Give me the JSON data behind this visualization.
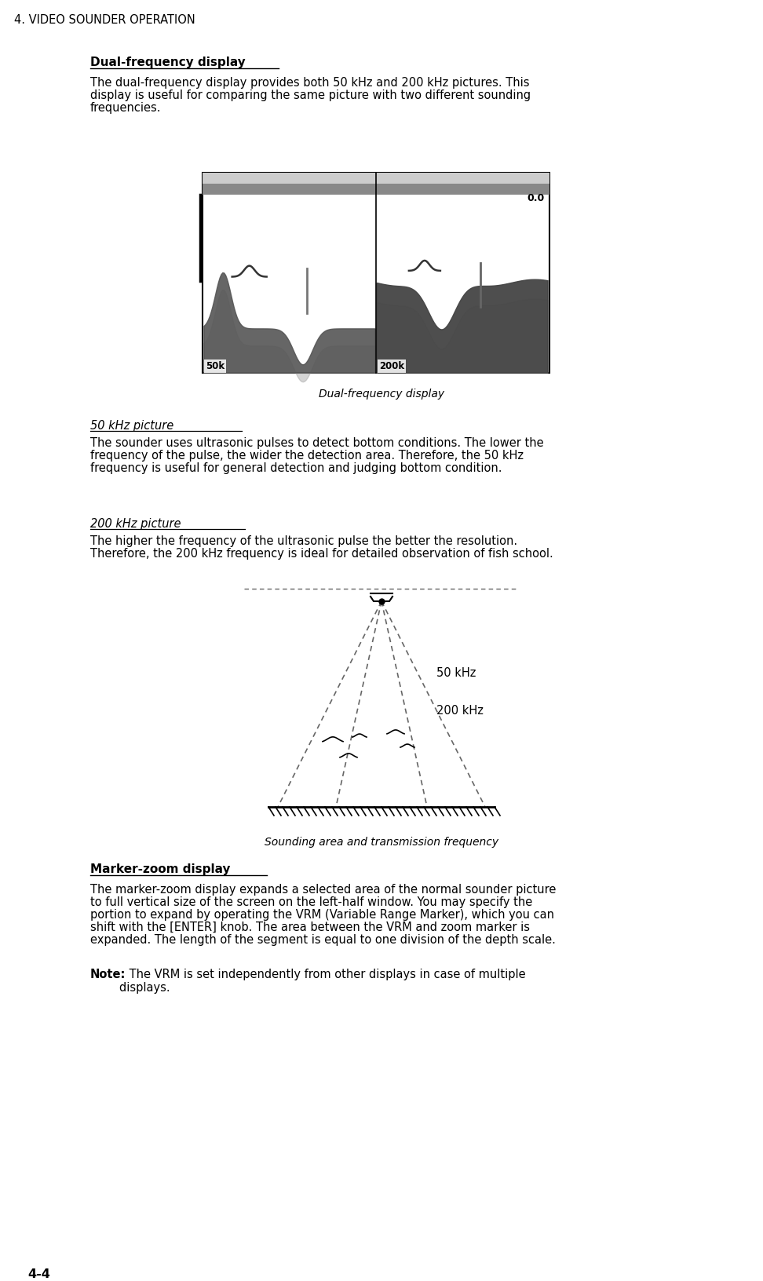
{
  "page_header": "4. VIDEO SOUNDER OPERATION",
  "page_number": "4-4",
  "section1_title": "Dual-frequency display",
  "section1_para": "The dual-frequency display provides both 50 kHz and 200 kHz pictures. This\ndisplay is useful for comparing the same picture with two different sounding\nfrequencies.",
  "section1_caption": "Dual-frequency display",
  "section2_title": "50 kHz picture",
  "section2_para": "The sounder uses ultrasonic pulses to detect bottom conditions. The lower the\nfrequency of the pulse, the wider the detection area. Therefore, the 50 kHz\nfrequency is useful for general detection and judging bottom condition.",
  "section3_title": "200 kHz picture",
  "section3_para": "The higher the frequency of the ultrasonic pulse the better the resolution.\nTherefore, the 200 kHz frequency is ideal for detailed observation of fish school.",
  "section3_caption": "Sounding area and transmission frequency",
  "section4_title": "Marker-zoom display",
  "section4_para": "The marker-zoom display expands a selected area of the normal sounder picture\nto full vertical size of the screen on the left-half window. You may specify the\nportion to expand by operating the VRM (Variable Range Marker), which you can\nshift with the [ENTER] knob. The area between the VRM and zoom marker is\nexpanded. The length of the segment is equal to one division of the depth scale.",
  "note_bold": "Note:",
  "note_text": " The VRM is set independently from other displays in case of multiple",
  "note_text2": "        displays.",
  "bg_color": "#ffffff",
  "text_color": "#000000",
  "header_color": "#000000"
}
